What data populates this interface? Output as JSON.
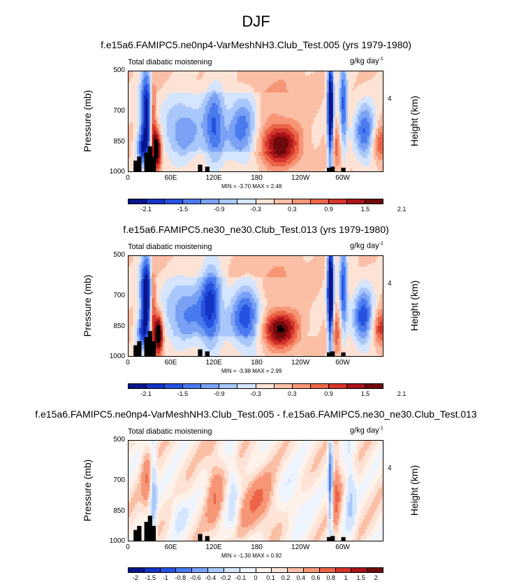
{
  "main_title": "DJF",
  "colors": {
    "scale13": [
      "#08158c",
      "#1533c4",
      "#2752e0",
      "#4a7bee",
      "#7aa1f4",
      "#a9c7fa",
      "#d4e5fd",
      "#fde3d6",
      "#fbbfa6",
      "#f69676",
      "#ec6548",
      "#d4352a",
      "#a8141a",
      "#6e0a0a"
    ],
    "scale15": [
      "#08158c",
      "#1533c4",
      "#2752e0",
      "#4a7bee",
      "#7aa1f4",
      "#a9c7fa",
      "#d4e5fd",
      "#eef5ff",
      "#fff2ea",
      "#fde3d6",
      "#fbbfa6",
      "#f69676",
      "#ec6548",
      "#d4352a",
      "#a8141a",
      "#6e0a0a"
    ],
    "topography": "#000000"
  },
  "chart_data": [
    {
      "type": "heatmap",
      "title": "f.e15a6.FAMIPC5.ne0np4-VarMeshNH3.Club_Test.005 (yrs 1979-1980)",
      "left_label": "Total diabatic moistening",
      "units": "g/kg day",
      "units_exp": "-1",
      "ylabel": "Pressure (mb)",
      "ylabel_right": "Height (km)",
      "x_ticks": [
        "0",
        "60E",
        "120E",
        "180",
        "120W",
        "60W"
      ],
      "y_ticks": [
        "500",
        "700",
        "850",
        "1000"
      ],
      "right_ticks": [
        "4"
      ],
      "xlim": [
        0,
        357
      ],
      "ylim": [
        1000,
        500
      ],
      "stats": "MIN = -3.70  MAX =  2.48",
      "colorbar_labels": [
        "-2.1",
        "-1.5",
        "-0.9",
        "-0.3",
        "0.3",
        "0.9",
        "1.5",
        "2.1"
      ],
      "features": [
        {
          "lon": 25,
          "p": 690,
          "v": -2.3,
          "wx": 6,
          "wp": 140
        },
        {
          "lon": 34,
          "p": 760,
          "v": 1.6,
          "wx": 3,
          "wp": 160
        },
        {
          "lon": 40,
          "p": 880,
          "v": 2.2,
          "wx": 4,
          "wp": 70
        },
        {
          "lon": 20,
          "p": 880,
          "v": -1.5,
          "wx": 6,
          "wp": 60
        },
        {
          "lon": 75,
          "p": 790,
          "v": -1.0,
          "wx": 20,
          "wp": 110
        },
        {
          "lon": 120,
          "p": 770,
          "v": -1.3,
          "wx": 10,
          "wp": 130
        },
        {
          "lon": 160,
          "p": 780,
          "v": -1.2,
          "wx": 15,
          "wp": 120
        },
        {
          "lon": 210,
          "p": 860,
          "v": 1.9,
          "wx": 20,
          "wp": 70
        },
        {
          "lon": 200,
          "p": 640,
          "v": 0.4,
          "wx": 35,
          "wp": 100
        },
        {
          "lon": 282,
          "p": 700,
          "v": -3.0,
          "wx": 3,
          "wp": 200
        },
        {
          "lon": 300,
          "p": 680,
          "v": -1.6,
          "wx": 4,
          "wp": 170
        },
        {
          "lon": 330,
          "p": 800,
          "v": -1.5,
          "wx": 10,
          "wp": 100
        },
        {
          "lon": 352,
          "p": 860,
          "v": 1.0,
          "wx": 8,
          "wp": 60
        },
        {
          "lon": 290,
          "p": 880,
          "v": 0.8,
          "wx": 8,
          "wp": 80
        }
      ],
      "topography": [
        [
          10,
          940
        ],
        [
          15,
          920
        ],
        [
          25,
          900
        ],
        [
          30,
          870
        ],
        [
          35,
          920
        ],
        [
          100,
          960
        ],
        [
          110,
          970
        ],
        [
          280,
          975
        ],
        [
          285,
          970
        ],
        [
          300,
          975
        ]
      ]
    },
    {
      "type": "heatmap",
      "title": "f.e15a6.FAMIPC5.ne30_ne30.Club_Test.013 (yrs 1979-1980)",
      "left_label": "Total diabatic moistening",
      "units": "g/kg day",
      "units_exp": "-1",
      "ylabel": "Pressure (mb)",
      "ylabel_right": "Height (km)",
      "x_ticks": [
        "0",
        "60E",
        "120E",
        "180",
        "120W",
        "60W"
      ],
      "y_ticks": [
        "500",
        "700",
        "850",
        "1000"
      ],
      "right_ticks": [
        "4"
      ],
      "xlim": [
        0,
        357
      ],
      "ylim": [
        1000,
        500
      ],
      "stats": "MIN = -3.98  MAX =  2.99",
      "colorbar_labels": [
        "-2.1",
        "-1.5",
        "-0.9",
        "-0.3",
        "0.3",
        "0.9",
        "1.5",
        "2.1"
      ],
      "features": [
        {
          "lon": 25,
          "p": 680,
          "v": -2.6,
          "wx": 6,
          "wp": 130
        },
        {
          "lon": 34,
          "p": 760,
          "v": 1.6,
          "wx": 3,
          "wp": 160
        },
        {
          "lon": 42,
          "p": 880,
          "v": 2.5,
          "wx": 4,
          "wp": 70
        },
        {
          "lon": 20,
          "p": 880,
          "v": -1.4,
          "wx": 6,
          "wp": 60
        },
        {
          "lon": 80,
          "p": 780,
          "v": -1.1,
          "wx": 22,
          "wp": 110
        },
        {
          "lon": 115,
          "p": 740,
          "v": -1.5,
          "wx": 10,
          "wp": 150
        },
        {
          "lon": 165,
          "p": 800,
          "v": -1.6,
          "wx": 15,
          "wp": 110
        },
        {
          "lon": 210,
          "p": 860,
          "v": 2.0,
          "wx": 18,
          "wp": 60
        },
        {
          "lon": 195,
          "p": 640,
          "v": 0.4,
          "wx": 35,
          "wp": 100
        },
        {
          "lon": 282,
          "p": 690,
          "v": -3.3,
          "wx": 3,
          "wp": 200
        },
        {
          "lon": 300,
          "p": 680,
          "v": -1.7,
          "wx": 4,
          "wp": 170
        },
        {
          "lon": 328,
          "p": 800,
          "v": -1.7,
          "wx": 10,
          "wp": 100
        },
        {
          "lon": 352,
          "p": 860,
          "v": 1.1,
          "wx": 8,
          "wp": 60
        },
        {
          "lon": 290,
          "p": 880,
          "v": 0.9,
          "wx": 8,
          "wp": 80
        }
      ],
      "topography": [
        [
          10,
          940
        ],
        [
          15,
          920
        ],
        [
          25,
          900
        ],
        [
          30,
          870
        ],
        [
          35,
          920
        ],
        [
          100,
          960
        ],
        [
          110,
          970
        ],
        [
          280,
          975
        ],
        [
          285,
          970
        ],
        [
          300,
          975
        ]
      ]
    },
    {
      "type": "heatmap",
      "title": "f.e15a6.FAMIPC5.ne0np4-VarMeshNH3.Club_Test.005 - f.e15a6.FAMIPC5.ne30_ne30.Club_Test.013",
      "left_label": "Total diabatic moistening",
      "units": "g/kg day",
      "units_exp": "-1",
      "ylabel": "Pressure (mb)",
      "ylabel_right": "Height (km)",
      "x_ticks": [
        "0",
        "60E",
        "120E",
        "180",
        "120W",
        "60W"
      ],
      "y_ticks": [
        "500",
        "700",
        "850",
        "1000"
      ],
      "right_ticks": [
        "4"
      ],
      "xlim": [
        0,
        357
      ],
      "ylim": [
        1000,
        500
      ],
      "stats": "MIN = -1.30  MAX =  0.92",
      "colorbar_labels": [
        "-2",
        "-1.5",
        "-1",
        "-0.8",
        "-0.6",
        "-0.4",
        "-0.2",
        "-0.1",
        "0",
        "0.1",
        "0.2",
        "0.4",
        "0.6",
        "0.8",
        "1",
        "1.5",
        "2"
      ],
      "features": [
        {
          "lon": 35,
          "p": 760,
          "v": -0.5,
          "wx": 3,
          "wp": 180
        },
        {
          "lon": 25,
          "p": 700,
          "v": 0.3,
          "wx": 5,
          "wp": 120
        },
        {
          "lon": 120,
          "p": 750,
          "v": 0.3,
          "wx": 8,
          "wp": 160
        },
        {
          "lon": 145,
          "p": 750,
          "v": -0.3,
          "wx": 6,
          "wp": 160
        },
        {
          "lon": 180,
          "p": 800,
          "v": 0.35,
          "wx": 20,
          "wp": 100
        },
        {
          "lon": 230,
          "p": 800,
          "v": -0.2,
          "wx": 15,
          "wp": 100
        },
        {
          "lon": 282,
          "p": 700,
          "v": -0.9,
          "wx": 2,
          "wp": 200
        },
        {
          "lon": 290,
          "p": 760,
          "v": 0.4,
          "wx": 4,
          "wp": 150
        },
        {
          "lon": 310,
          "p": 760,
          "v": -0.4,
          "wx": 5,
          "wp": 150
        },
        {
          "lon": 70,
          "p": 850,
          "v": -0.2,
          "wx": 10,
          "wp": 80
        }
      ],
      "topography": [
        [
          10,
          940
        ],
        [
          15,
          920
        ],
        [
          25,
          900
        ],
        [
          30,
          870
        ],
        [
          35,
          920
        ],
        [
          100,
          960
        ],
        [
          110,
          970
        ],
        [
          280,
          975
        ],
        [
          285,
          970
        ],
        [
          300,
          975
        ]
      ]
    }
  ]
}
